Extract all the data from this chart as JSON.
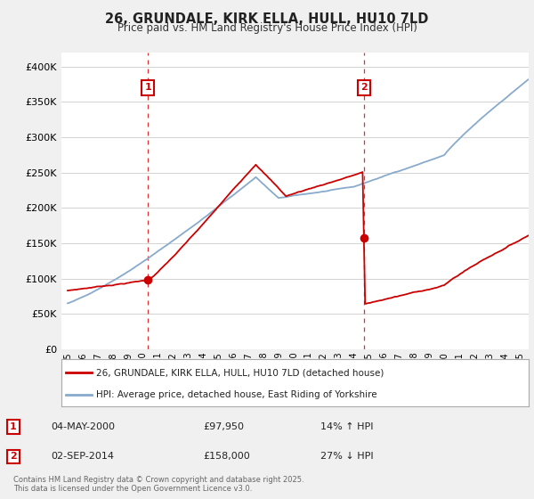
{
  "title": "26, GRUNDALE, KIRK ELLA, HULL, HU10 7LD",
  "subtitle": "Price paid vs. HM Land Registry's House Price Index (HPI)",
  "ylabel_ticks": [
    "£0",
    "£50K",
    "£100K",
    "£150K",
    "£200K",
    "£250K",
    "£300K",
    "£350K",
    "£400K"
  ],
  "ytick_values": [
    0,
    50000,
    100000,
    150000,
    200000,
    250000,
    300000,
    350000,
    400000
  ],
  "ylim": [
    0,
    420000
  ],
  "xlim_start": 1994.6,
  "xlim_end": 2025.6,
  "red_color": "#cc0000",
  "blue_color": "#88aacc",
  "purchase1_x": 2000.34,
  "purchase1_y": 97950,
  "purchase2_x": 2014.67,
  "purchase2_y": 158000,
  "vline1_x": 2000.34,
  "vline2_x": 2014.67,
  "legend_line1": "26, GRUNDALE, KIRK ELLA, HULL, HU10 7LD (detached house)",
  "legend_line2": "HPI: Average price, detached house, East Riding of Yorkshire",
  "annotation1_date": "04-MAY-2000",
  "annotation1_price": "£97,950",
  "annotation1_hpi": "14% ↑ HPI",
  "annotation2_date": "02-SEP-2014",
  "annotation2_price": "£158,000",
  "annotation2_hpi": "27% ↓ HPI",
  "footer": "Contains HM Land Registry data © Crown copyright and database right 2025.\nThis data is licensed under the Open Government Licence v3.0.",
  "bg_color": "#f0f0f0",
  "plot_bg_color": "#ffffff"
}
